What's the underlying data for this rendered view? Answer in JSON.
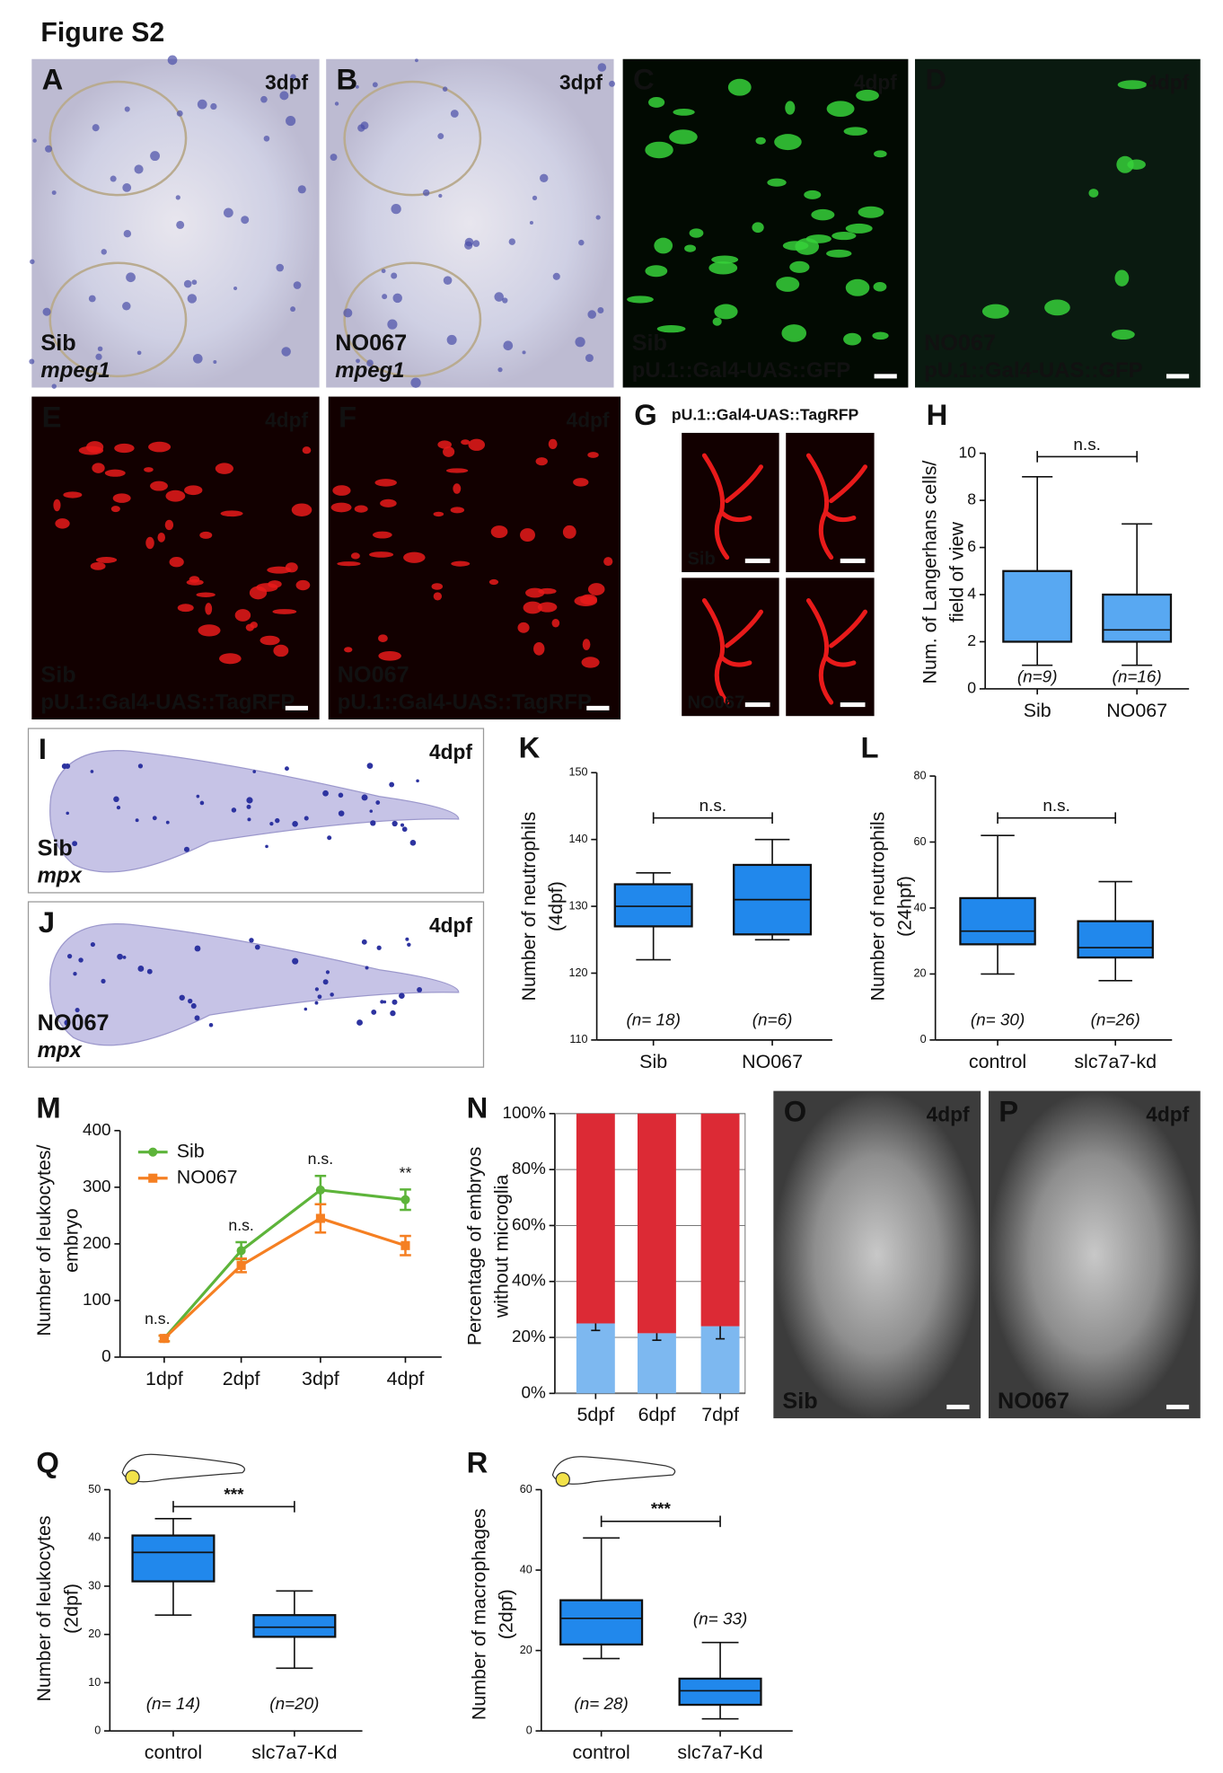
{
  "figure_title": "Figure S2",
  "image_panels": [
    {
      "letter": "A",
      "stage": "3dpf",
      "genotype": "Sib",
      "marker": "mpeg1"
    },
    {
      "letter": "B",
      "stage": "3dpf",
      "genotype": "NO067",
      "marker": "mpeg1"
    },
    {
      "letter": "C",
      "stage": "4dpf",
      "genotype": "Sib",
      "marker": "pU.1::Gal4-UAS::GFP"
    },
    {
      "letter": "D",
      "stage": "4dpf",
      "genotype": "NO067",
      "marker": "pU.1::Gal4-UAS::GFP"
    },
    {
      "letter": "E",
      "stage": "4dpf",
      "genotype": "Sib",
      "marker": "pU.1::Gal4-UAS::TagRFP"
    },
    {
      "letter": "F",
      "stage": "4dpf",
      "genotype": "NO067",
      "marker": "pU.1::Gal4-UAS::TagRFP"
    },
    {
      "letter": "G",
      "marker": "pU.1::Gal4-UAS::TagRFP",
      "rows": [
        "Sib",
        "NO067"
      ]
    },
    {
      "letter": "I",
      "stage": "4dpf",
      "genotype": "Sib",
      "marker": "mpx"
    },
    {
      "letter": "J",
      "stage": "4dpf",
      "genotype": "NO067",
      "marker": "mpx"
    },
    {
      "letter": "O",
      "stage": "4dpf",
      "genotype": "Sib"
    },
    {
      "letter": "P",
      "stage": "4dpf",
      "genotype": "NO067"
    }
  ],
  "chart_data": [
    {
      "type": "box",
      "panel": "H",
      "y_label": [
        "Num. of Langerhans cells/",
        "field of view"
      ],
      "categories": [
        "Sib",
        "NO067"
      ],
      "boxes": [
        {
          "min": 1,
          "q1": 2,
          "median": 2,
          "q3": 5,
          "max": 9
        },
        {
          "min": 1,
          "q1": 2,
          "median": 2.5,
          "q3": 4,
          "max": 7
        }
      ],
      "n_labels": [
        "(n=9)",
        "(n=16)"
      ],
      "significance": "n.s.",
      "ylim": [
        0,
        10
      ],
      "yticks": [
        0,
        2,
        4,
        6,
        8,
        10
      ],
      "color": "#58a8f2"
    },
    {
      "type": "box",
      "panel": "K",
      "y_label": [
        "Number of neutrophils",
        "(4dpf)"
      ],
      "categories": [
        "Sib",
        "NO067"
      ],
      "boxes": [
        {
          "min": 122,
          "q1": 127,
          "median": 130,
          "q3": 133.3,
          "max": 135
        },
        {
          "min": 125,
          "q1": 125.8,
          "median": 131,
          "q3": 136.2,
          "max": 140
        }
      ],
      "n_labels": [
        "(n= 18)",
        "(n=6)"
      ],
      "significance": "n.s.",
      "ylim": [
        110,
        150
      ],
      "yticks": [
        110,
        120,
        130,
        140,
        150
      ],
      "color": "#2188ec"
    },
    {
      "type": "box",
      "panel": "L",
      "y_label": [
        "Number of neutrophils",
        "(24hpf)"
      ],
      "categories": [
        "control",
        "slc7a7-kd"
      ],
      "boxes": [
        {
          "min": 20,
          "q1": 29,
          "median": 33,
          "q3": 43,
          "max": 62
        },
        {
          "min": 18,
          "q1": 25,
          "median": 28,
          "q3": 36,
          "max": 48
        }
      ],
      "n_labels": [
        "(n= 30)",
        "(n=26)"
      ],
      "significance": "n.s.",
      "ylim": [
        0,
        80
      ],
      "yticks": [
        0,
        20,
        40,
        60,
        80
      ],
      "color": "#2188ec"
    },
    {
      "type": "line",
      "panel": "M",
      "y_label": [
        "Number of leukocytes/",
        "embryo"
      ],
      "categories": [
        "1dpf",
        "2dpf",
        "3dpf",
        "4dpf"
      ],
      "series": [
        {
          "name": "Sib",
          "color": "#5db43a",
          "values": [
            33,
            188,
            295,
            278
          ],
          "errors": [
            5,
            15,
            25,
            18
          ]
        },
        {
          "name": "NO067",
          "color": "#f57f22",
          "values": [
            33,
            162,
            245,
            197
          ],
          "errors": [
            5,
            12,
            25,
            17
          ]
        }
      ],
      "annotations": [
        "n.s.",
        "n.s.",
        "n.s.",
        "**"
      ],
      "ylim": [
        0,
        400
      ],
      "yticks": [
        0,
        100,
        200,
        300,
        400
      ]
    },
    {
      "type": "stacked_bar",
      "panel": "N",
      "y_label": [
        "Percentage of embryos",
        "without microglia"
      ],
      "categories": [
        "5dpf",
        "6dpf",
        "7dpf"
      ],
      "series": [
        {
          "color": "#7db8f0",
          "values": [
            25,
            21.5,
            24
          ],
          "errors": [
            2.5,
            2.5,
            4.5
          ]
        },
        {
          "color": "#dc2a35",
          "values": [
            75,
            78.5,
            76
          ]
        }
      ],
      "ylim": [
        0,
        100
      ],
      "yticks": [
        {
          "value": 0,
          "label": "0%"
        },
        {
          "value": 20,
          "label": "20%"
        },
        {
          "value": 40,
          "label": "40%"
        },
        {
          "value": 60,
          "label": "60%"
        },
        {
          "value": 80,
          "label": "80%"
        },
        {
          "value": 100,
          "label": "100%"
        }
      ],
      "grid": true
    },
    {
      "type": "box",
      "panel": "Q",
      "y_label": [
        "Number of leukocytes",
        "(2dpf)"
      ],
      "categories": [
        "control",
        "slc7a7-Kd"
      ],
      "boxes": [
        {
          "min": 24,
          "q1": 31,
          "median": 37,
          "q3": 40.5,
          "max": 44
        },
        {
          "min": 13,
          "q1": 19.5,
          "median": 21.5,
          "q3": 24,
          "max": 29
        }
      ],
      "n_labels": [
        "(n= 14)",
        "(n=20)"
      ],
      "significance": "***",
      "ylim": [
        0,
        50
      ],
      "yticks": [
        0,
        10,
        20,
        30,
        40,
        50
      ],
      "color": "#2188ec"
    },
    {
      "type": "box",
      "panel": "R",
      "y_label": [
        "Number of macrophages",
        "(2dpf)"
      ],
      "categories": [
        "control",
        "slc7a7-Kd"
      ],
      "boxes": [
        {
          "min": 18,
          "q1": 21.5,
          "median": 28,
          "q3": 32.5,
          "max": 48
        },
        {
          "min": 3,
          "q1": 6.5,
          "median": 10,
          "q3": 13,
          "max": 22
        }
      ],
      "n_labels": [
        "(n= 28)",
        "(n= 33)"
      ],
      "significance": "***",
      "ylim": [
        0,
        60
      ],
      "yticks": [
        0,
        20,
        40,
        60
      ],
      "color": "#2188ec"
    }
  ]
}
